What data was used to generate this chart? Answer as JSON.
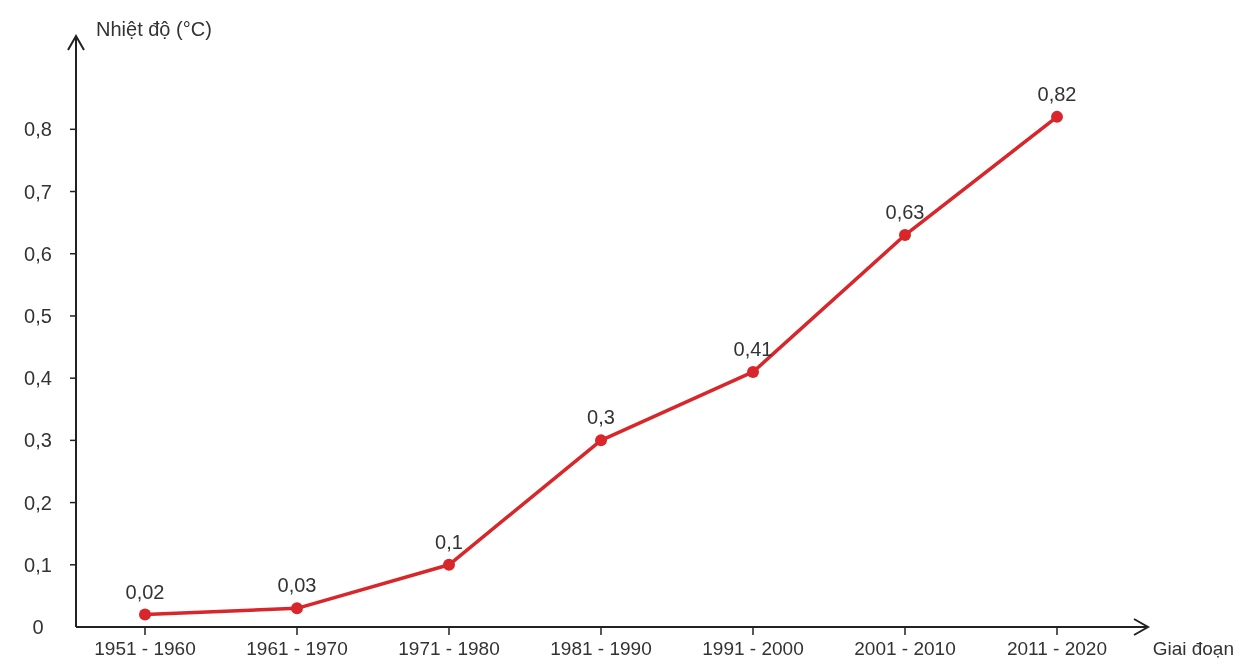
{
  "chart_data": {
    "type": "line",
    "xlabel": "Giai đoạn",
    "ylabel": "Nhiệt độ (°C)",
    "categories": [
      "1951 - 1960",
      "1961 - 1970",
      "1971 - 1980",
      "1981 - 1990",
      "1991 - 2000",
      "2001 - 2010",
      "2011 - 2020"
    ],
    "series": [
      {
        "color": "#d8262b",
        "values": [
          0.02,
          0.03,
          0.1,
          0.3,
          0.41,
          0.63,
          0.82
        ],
        "value_labels": [
          "0,02",
          "0,03",
          "0,1",
          "0,3",
          "0,41",
          "0,63",
          "0,82"
        ]
      }
    ],
    "ylim": [
      0,
      0.95
    ],
    "yticks": [
      0,
      {
        "value": 0.1,
        "label": "0,1"
      },
      {
        "value": 0.2,
        "label": "0,2"
      },
      {
        "value": 0.3,
        "label": "0,3"
      },
      {
        "value": 0.4,
        "label": "0,4"
      },
      {
        "value": 0.5,
        "label": "0,5"
      },
      {
        "value": 0.6,
        "label": "0,6"
      },
      {
        "value": 0.7,
        "label": "0,7"
      },
      {
        "value": 0.8,
        "label": "0,8"
      }
    ],
    "marker": "circle",
    "line_style": "solid"
  }
}
